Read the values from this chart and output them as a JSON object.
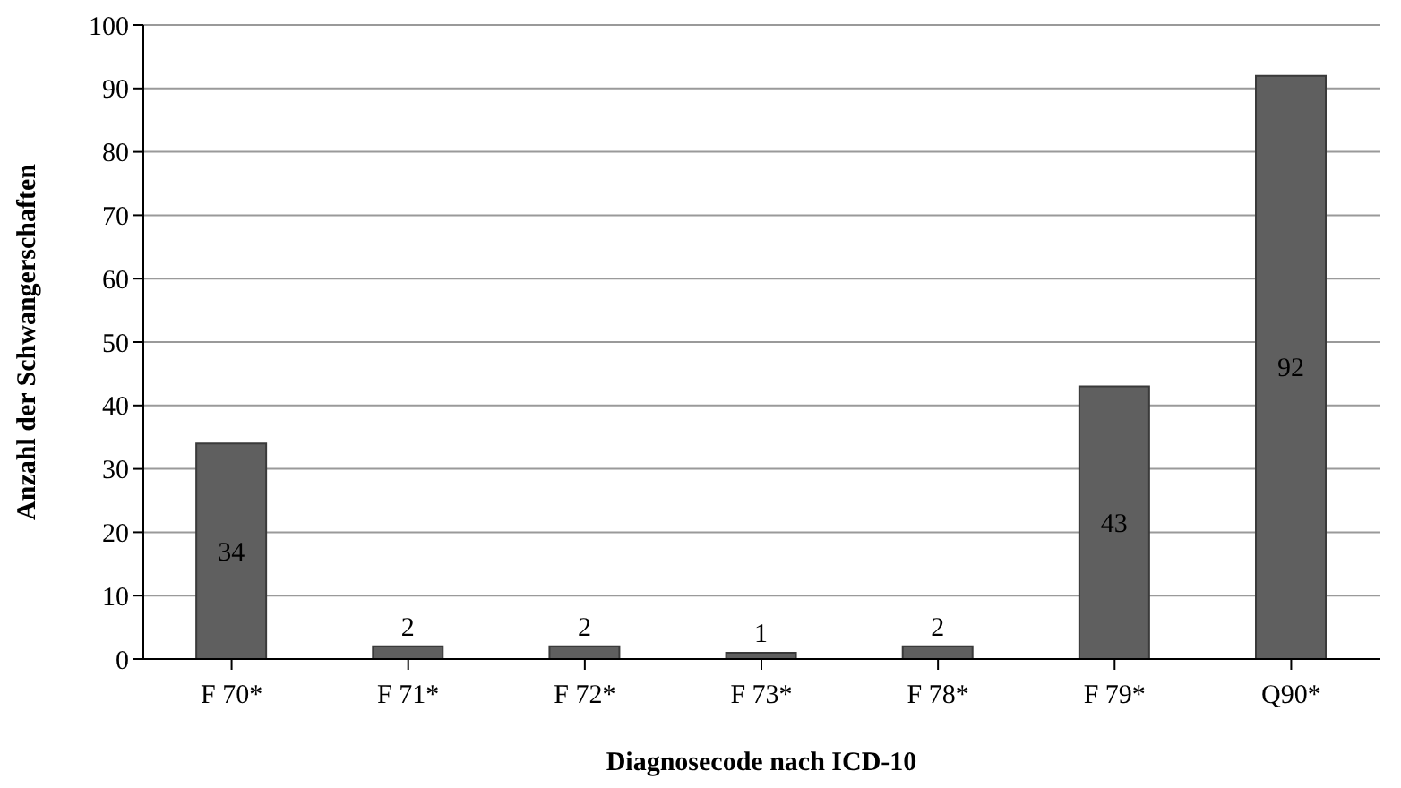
{
  "chart_data": {
    "type": "bar",
    "xlabel": "Diagnosecode nach ICD-10",
    "ylabel": "Anzahl der Schwangerschaften",
    "categories": [
      "F 70*",
      "F 71*",
      "F 72*",
      "F 73*",
      "F 78*",
      "F 79*",
      "Q90*"
    ],
    "values": [
      34,
      2,
      2,
      1,
      2,
      43,
      92
    ],
    "color": "#5f5f5f",
    "ylim": [
      0,
      100
    ],
    "yticks": [
      0,
      10,
      20,
      30,
      40,
      50,
      60,
      70,
      80,
      90,
      100
    ],
    "grid": "y",
    "data_labels": true
  }
}
